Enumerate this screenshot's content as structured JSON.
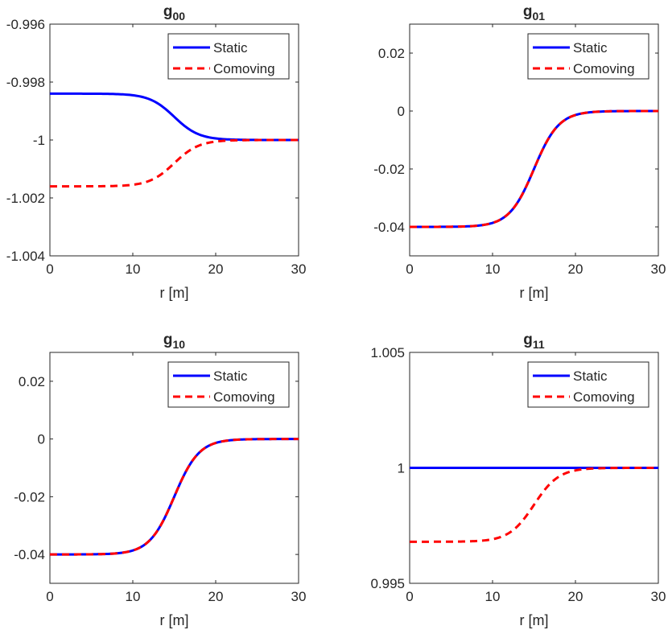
{
  "legend": {
    "static_label": "Static",
    "comoving_label": "Comoving"
  },
  "colors": {
    "static": "#0000ff",
    "comoving": "#ff0000",
    "axis": "#262626"
  },
  "chart_data": [
    {
      "id": "g00",
      "type": "line",
      "title_main": "g",
      "title_sub": "00",
      "xlabel": "r [m]",
      "ylabel": "",
      "xlim": [
        0,
        30
      ],
      "ylim": [
        -1.004,
        -0.996
      ],
      "xticks": [
        0,
        10,
        20,
        30
      ],
      "xtick_labels": [
        "0",
        "10",
        "20",
        "30"
      ],
      "yticks": [
        -0.996,
        -0.998,
        -1,
        -1.002,
        -1.004
      ],
      "ytick_labels": [
        "-0.996",
        "-0.998",
        "-1",
        "-1.002",
        "-1.004"
      ],
      "legend_position": "top-right",
      "series": [
        {
          "name": "Static",
          "style": "solid",
          "start": -0.9984,
          "end": -1.0
        },
        {
          "name": "Comoving",
          "style": "dashed",
          "start": -1.0016,
          "end": -1.0
        }
      ]
    },
    {
      "id": "g01",
      "type": "line",
      "title_main": "g",
      "title_sub": "01",
      "xlabel": "r [m]",
      "ylabel": "",
      "xlim": [
        0,
        30
      ],
      "ylim": [
        -0.05,
        0.03
      ],
      "xticks": [
        0,
        10,
        20,
        30
      ],
      "xtick_labels": [
        "0",
        "10",
        "20",
        "30"
      ],
      "yticks": [
        0.02,
        0,
        -0.02,
        -0.04
      ],
      "ytick_labels": [
        "0.02",
        "0",
        "-0.02",
        "-0.04"
      ],
      "legend_position": "top-right",
      "series": [
        {
          "name": "Static",
          "style": "solid",
          "start": -0.04,
          "end": 0.0
        },
        {
          "name": "Comoving",
          "style": "dashed",
          "start": -0.04,
          "end": 0.0
        }
      ]
    },
    {
      "id": "g10",
      "type": "line",
      "title_main": "g",
      "title_sub": "10",
      "xlabel": "r [m]",
      "ylabel": "",
      "xlim": [
        0,
        30
      ],
      "ylim": [
        -0.05,
        0.03
      ],
      "xticks": [
        0,
        10,
        20,
        30
      ],
      "xtick_labels": [
        "0",
        "10",
        "20",
        "30"
      ],
      "yticks": [
        0.02,
        0,
        -0.02,
        -0.04
      ],
      "ytick_labels": [
        "0.02",
        "0",
        "-0.02",
        "-0.04"
      ],
      "legend_position": "top-right",
      "series": [
        {
          "name": "Static",
          "style": "solid",
          "start": -0.04,
          "end": 0.0
        },
        {
          "name": "Comoving",
          "style": "dashed",
          "start": -0.04,
          "end": 0.0
        }
      ]
    },
    {
      "id": "g11",
      "type": "line",
      "title_main": "g",
      "title_sub": "11",
      "xlabel": "r [m]",
      "ylabel": "",
      "xlim": [
        0,
        30
      ],
      "ylim": [
        0.995,
        1.005
      ],
      "xticks": [
        0,
        10,
        20,
        30
      ],
      "xtick_labels": [
        "0",
        "10",
        "20",
        "30"
      ],
      "yticks": [
        1.005,
        1,
        0.995
      ],
      "ytick_labels": [
        "1.005",
        "1",
        "0.995"
      ],
      "legend_position": "top-right",
      "series": [
        {
          "name": "Static",
          "style": "solid",
          "start": 1.0,
          "end": 1.0
        },
        {
          "name": "Comoving",
          "style": "dashed",
          "start": 0.9968,
          "end": 1.0
        }
      ]
    }
  ]
}
